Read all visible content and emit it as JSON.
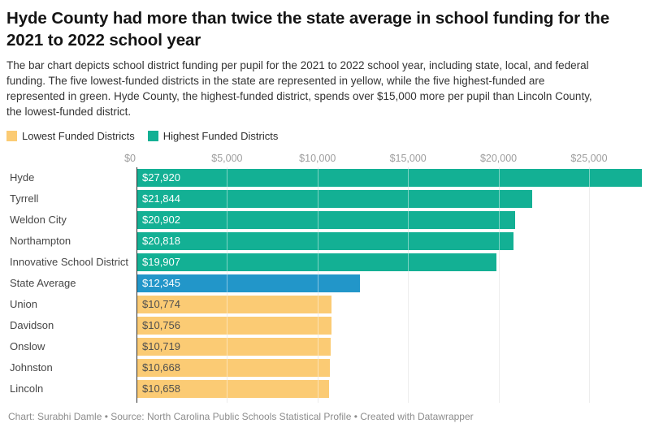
{
  "header": {
    "title": "Hyde County had more than twice the state average in school funding for the 2021 to 2022 school year",
    "description": "The bar chart depicts school district funding per pupil for the 2021 to 2022 school year, including state, local, and federal funding. The five lowest-funded districts in the state are represented in yellow, while the five highest-funded are represented in green. Hyde County, the highest-funded district, spends over $15,000 more per pupil than Lincoln County, the lowest-funded district."
  },
  "legend": {
    "items": [
      {
        "label": "Lowest Funded Districts",
        "group": "lowest",
        "color": "#fbcb74"
      },
      {
        "label": "Highest Funded Districts",
        "group": "highest",
        "color": "#13b094"
      }
    ]
  },
  "chart_data": {
    "type": "bar",
    "orientation": "horizontal",
    "unit": "dollars per pupil",
    "xlim": [
      0,
      27920
    ],
    "grid": true,
    "x_ticks": [
      {
        "value": 0,
        "label": "$0"
      },
      {
        "value": 5000,
        "label": "$5,000"
      },
      {
        "value": 10000,
        "label": "$10,000"
      },
      {
        "value": 15000,
        "label": "$15,000"
      },
      {
        "value": 20000,
        "label": "$20,000"
      },
      {
        "value": 25000,
        "label": "$25,000"
      }
    ],
    "rows": [
      {
        "label": "Hyde",
        "value": 27920,
        "display": "$27,920",
        "group": "highest"
      },
      {
        "label": "Tyrrell",
        "value": 21844,
        "display": "$21,844",
        "group": "highest"
      },
      {
        "label": "Weldon City",
        "value": 20902,
        "display": "$20,902",
        "group": "highest"
      },
      {
        "label": "Northampton",
        "value": 20818,
        "display": "$20,818",
        "group": "highest"
      },
      {
        "label": "Innovative School District",
        "value": 19907,
        "display": "$19,907",
        "group": "highest"
      },
      {
        "label": "State Average",
        "value": 12345,
        "display": "$12,345",
        "group": "average"
      },
      {
        "label": "Union",
        "value": 10774,
        "display": "$10,774",
        "group": "lowest"
      },
      {
        "label": "Davidson",
        "value": 10756,
        "display": "$10,756",
        "group": "lowest"
      },
      {
        "label": "Onslow",
        "value": 10719,
        "display": "$10,719",
        "group": "lowest"
      },
      {
        "label": "Johnston",
        "value": 10668,
        "display": "$10,668",
        "group": "lowest"
      },
      {
        "label": "Lincoln",
        "value": 10658,
        "display": "$10,658",
        "group": "lowest"
      }
    ],
    "group_colors": {
      "highest": "#13b094",
      "average": "#2296c9",
      "lowest": "#fbcb74"
    },
    "value_label_colors": {
      "highest": "#ffffff",
      "average": "#ffffff",
      "lowest": "#4f4f4f"
    },
    "gridline_color": "#dedede",
    "axis_line_color": "#2e2e2e"
  },
  "footer": {
    "credit": "Chart: Surabhi Damle • Source: North Carolina Public Schools Statistical Profile • Created with Datawrapper"
  }
}
